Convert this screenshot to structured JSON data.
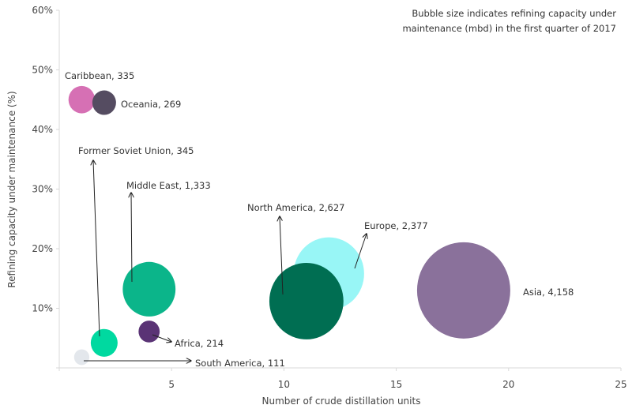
{
  "chart_data": {
    "type": "bubble",
    "title": "",
    "annotation": [
      "Bubble size indicates refining capacity under",
      "maintenance (mbd) in the first quarter of 2017"
    ],
    "xlabel": "Number of crude distillation units",
    "ylabel": "Refining capacity under maintenance (%)",
    "xlim": [
      0,
      25
    ],
    "ylim": [
      0,
      60
    ],
    "xticks": [
      5,
      10,
      15,
      20,
      25
    ],
    "xtick_labels": [
      "5",
      "10",
      "15",
      "20",
      "25"
    ],
    "yticks": [
      10,
      20,
      30,
      40,
      50,
      60
    ],
    "ytick_labels": [
      "10%",
      "20%",
      "30%",
      "40%",
      "50%",
      "60%"
    ],
    "series": [
      {
        "name": "Caribbean",
        "x": 1,
        "y": 45,
        "size": 335,
        "label": "Caribbean, 335",
        "color": "#d670b4"
      },
      {
        "name": "Oceania",
        "x": 2,
        "y": 44.5,
        "size": 269,
        "label": "Oceania, 269",
        "color": "#554c61"
      },
      {
        "name": "Former Soviet Union",
        "x": 2,
        "y": 4.2,
        "size": 345,
        "label": "Former Soviet Union, 345",
        "color": "#00d9a0"
      },
      {
        "name": "Middle East",
        "x": 4,
        "y": 13.2,
        "size": 1333,
        "label": "Middle East, 1,333",
        "color": "#0bb58a"
      },
      {
        "name": "Africa",
        "x": 4,
        "y": 6.1,
        "size": 214,
        "label": "Africa, 214",
        "color": "#5a3375"
      },
      {
        "name": "South America",
        "x": 1,
        "y": 1.8,
        "size": 111,
        "label": "South America, 111",
        "color": "#e3e7ec"
      },
      {
        "name": "Europe",
        "x": 12,
        "y": 15.8,
        "size": 2377,
        "label": "Europe, 2,377",
        "color": "#98f6f6"
      },
      {
        "name": "North America",
        "x": 11,
        "y": 11.2,
        "size": 2627,
        "label": "North America, 2,627",
        "color": "#006e52"
      },
      {
        "name": "Asia",
        "x": 18,
        "y": 13,
        "size": 4158,
        "label": "Asia, 4,158",
        "color": "#8a719b"
      }
    ]
  }
}
